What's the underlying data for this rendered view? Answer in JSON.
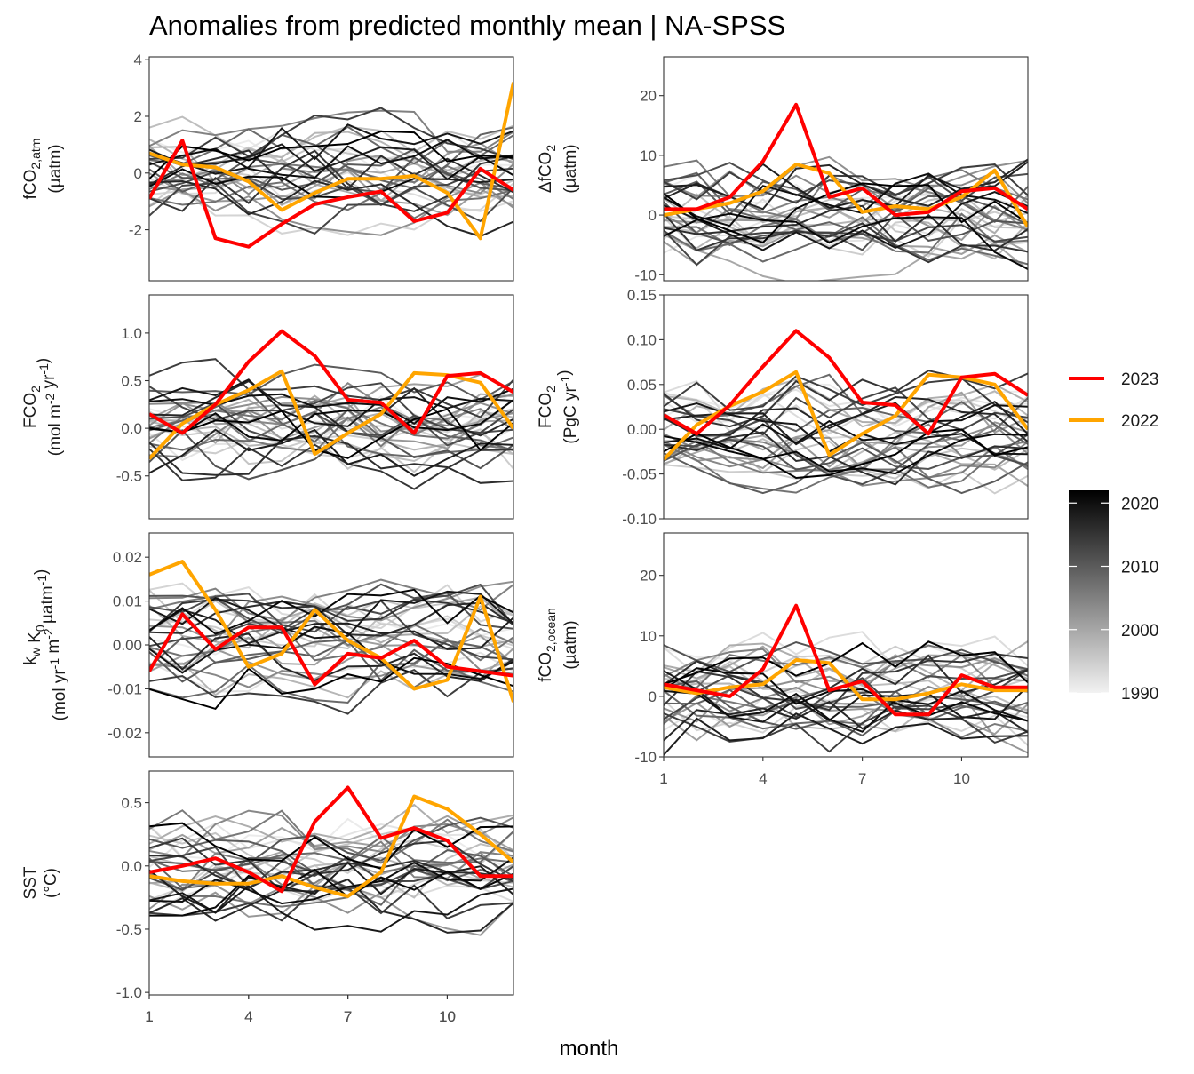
{
  "title": "Anomalies from predicted monthly mean | NA-SPSS",
  "x_axis_title": "month",
  "colors": {
    "year_2023": "#ff0000",
    "year_2022": "#ffa500",
    "background_years_light": "#f2f2f2",
    "background_years_dark": "#000000"
  },
  "legend": {
    "highlight": [
      {
        "label": "2023",
        "color": "#ff0000"
      },
      {
        "label": "2022",
        "color": "#ffa500"
      }
    ],
    "gradient_ticks": [
      "2020",
      "2010",
      "2000",
      "1990"
    ],
    "gradient_values": [
      2020,
      2010,
      2000,
      1990
    ],
    "gradient_range": [
      1990,
      2022
    ]
  },
  "chart_data": [
    {
      "type": "line",
      "panel": "fCO2_atm",
      "ylabel_parts": [
        "fCO",
        "2,atm",
        "(µatm)"
      ],
      "xlim": [
        1,
        12
      ],
      "ylim": [
        -3.8,
        4.1
      ],
      "x_ticks": [
        1,
        4,
        7,
        10
      ],
      "x_tick_labels": [
        "1",
        "4",
        "7",
        "10"
      ],
      "y_ticks": [
        -2,
        0,
        2,
        4
      ],
      "y_tick_labels": [
        "-2",
        "0",
        "2",
        "4"
      ],
      "x": [
        1,
        2,
        3,
        4,
        5,
        6,
        7,
        8,
        9,
        10,
        11,
        12
      ],
      "series": [
        {
          "name": "2023",
          "values": [
            -0.9,
            1.15,
            -2.3,
            -2.6,
            -1.8,
            -1.1,
            -0.85,
            -0.65,
            -1.7,
            -1.4,
            0.15,
            -0.6
          ]
        },
        {
          "name": "2022",
          "values": [
            0.7,
            0.3,
            0.2,
            -0.3,
            -1.3,
            -0.7,
            -0.2,
            -0.2,
            -0.1,
            -0.7,
            -2.3,
            3.2
          ]
        }
      ]
    },
    {
      "type": "line",
      "panel": "delta_fCO2",
      "ylabel_parts": [
        "ΔfCO",
        "2",
        "(µatm)"
      ],
      "xlim": [
        1,
        12
      ],
      "ylim": [
        -11,
        26.5
      ],
      "x_ticks": [
        1,
        4,
        7,
        10
      ],
      "x_tick_labels": [
        "1",
        "4",
        "7",
        "10"
      ],
      "y_ticks": [
        -10,
        0,
        10,
        20
      ],
      "y_tick_labels": [
        "-10",
        "0",
        "10",
        "20"
      ],
      "x": [
        1,
        2,
        3,
        4,
        5,
        6,
        7,
        8,
        9,
        10,
        11,
        12
      ],
      "series": [
        {
          "name": "2023",
          "values": [
            1,
            1,
            3,
            9,
            18.5,
            3,
            4.5,
            0,
            0.5,
            4,
            4.5,
            1
          ]
        },
        {
          "name": "2022",
          "values": [
            0,
            1,
            2,
            4,
            8.5,
            7,
            0.5,
            1.5,
            1,
            3,
            7.5,
            -2
          ]
        }
      ]
    },
    {
      "type": "line",
      "panel": "FCO2_flux_density",
      "ylabel_parts": [
        "FCO",
        "2",
        "(mol m",
        "-2",
        " yr",
        "-1",
        ")"
      ],
      "xlim": [
        1,
        12
      ],
      "ylim": [
        -0.95,
        1.4
      ],
      "x_ticks": [
        1,
        4,
        7,
        10
      ],
      "x_tick_labels": [
        "1",
        "4",
        "7",
        "10"
      ],
      "y_ticks": [
        -0.5,
        0,
        0.5,
        1.0
      ],
      "y_tick_labels": [
        "-0.5",
        "0.0",
        "0.5",
        "1.0"
      ],
      "x": [
        1,
        2,
        3,
        4,
        5,
        6,
        7,
        8,
        9,
        10,
        11,
        12
      ],
      "series": [
        {
          "name": "2023",
          "values": [
            0.15,
            -0.05,
            0.25,
            0.7,
            1.02,
            0.76,
            0.3,
            0.27,
            -0.05,
            0.55,
            0.58,
            0.38
          ]
        },
        {
          "name": "2022",
          "values": [
            -0.32,
            0.05,
            0.25,
            0.4,
            0.6,
            -0.27,
            -0.05,
            0.15,
            0.58,
            0.56,
            0.48,
            0.0
          ]
        }
      ]
    },
    {
      "type": "line",
      "panel": "FCO2_integrated",
      "ylabel_parts": [
        "FCO",
        "2",
        "(PgC yr",
        "-1",
        ")"
      ],
      "xlim": [
        1,
        12
      ],
      "ylim": [
        -0.1,
        0.15
      ],
      "x_ticks": [
        1,
        4,
        7,
        10
      ],
      "x_tick_labels": [
        "1",
        "4",
        "7",
        "10"
      ],
      "y_ticks": [
        -0.1,
        -0.05,
        0,
        0.05,
        0.1,
        0.15
      ],
      "y_tick_labels": [
        "-0.10",
        "-0.05",
        "0.00",
        "0.05",
        "0.10",
        "0.15"
      ],
      "x": [
        1,
        2,
        3,
        4,
        5,
        6,
        7,
        8,
        9,
        10,
        11,
        12
      ],
      "series": [
        {
          "name": "2023",
          "values": [
            0.016,
            -0.005,
            0.027,
            0.07,
            0.11,
            0.08,
            0.03,
            0.027,
            -0.005,
            0.058,
            0.062,
            0.038
          ]
        },
        {
          "name": "2022",
          "values": [
            -0.034,
            0.005,
            0.026,
            0.042,
            0.064,
            -0.029,
            -0.005,
            0.015,
            0.061,
            0.058,
            0.05,
            0.0
          ]
        }
      ]
    },
    {
      "type": "line",
      "panel": "kw_K0",
      "ylabel_parts": [
        "k",
        "w",
        " K",
        "0",
        "(mol yr",
        "-1",
        " m",
        "-2",
        " µatm",
        "-1",
        ")"
      ],
      "xlim": [
        1,
        12
      ],
      "ylim": [
        -0.0255,
        0.0255
      ],
      "x_ticks": [
        1,
        4,
        7,
        10
      ],
      "x_tick_labels": [
        "1",
        "4",
        "7",
        "10"
      ],
      "y_ticks": [
        -0.02,
        -0.01,
        0,
        0.01,
        0.02
      ],
      "y_tick_labels": [
        "-0.02",
        "-0.01",
        "0.00",
        "0.01",
        "0.02"
      ],
      "x": [
        1,
        2,
        3,
        4,
        5,
        6,
        7,
        8,
        9,
        10,
        11,
        12
      ],
      "series": [
        {
          "name": "2023",
          "values": [
            -0.006,
            0.007,
            -0.001,
            0.004,
            0.004,
            -0.009,
            -0.002,
            -0.003,
            0.001,
            -0.005,
            -0.006,
            -0.007
          ]
        },
        {
          "name": "2022",
          "values": [
            0.016,
            0.019,
            0.008,
            -0.005,
            -0.002,
            0.008,
            0.001,
            -0.003,
            -0.01,
            -0.008,
            0.011,
            -0.013
          ]
        }
      ]
    },
    {
      "type": "line",
      "panel": "fCO2_ocean",
      "ylabel_parts": [
        "fCO",
        "2,ocean",
        "(µatm)"
      ],
      "xlim": [
        1,
        12
      ],
      "ylim": [
        -10,
        27
      ],
      "x_ticks": [
        1,
        4,
        7,
        10
      ],
      "x_tick_labels": [
        "1",
        "4",
        "7",
        "10"
      ],
      "y_ticks": [
        -10,
        0,
        10,
        20
      ],
      "y_tick_labels": [
        "-10",
        "0",
        "10",
        "20"
      ],
      "x": [
        1,
        2,
        3,
        4,
        5,
        6,
        7,
        8,
        9,
        10,
        11,
        12
      ],
      "series": [
        {
          "name": "2023",
          "values": [
            2,
            1,
            0,
            4.5,
            15,
            1,
            2.5,
            -3,
            -3,
            3.5,
            1.5,
            1.5
          ]
        },
        {
          "name": "2022",
          "values": [
            1.5,
            0.5,
            1.5,
            2,
            6,
            5.5,
            -0.5,
            -0.5,
            0.5,
            2,
            1,
            1
          ]
        }
      ]
    },
    {
      "type": "line",
      "panel": "SST",
      "ylabel_parts": [
        "SST",
        "(°C)"
      ],
      "xlim": [
        1,
        12
      ],
      "ylim": [
        -1.02,
        0.75
      ],
      "x_ticks": [
        1,
        4,
        7,
        10
      ],
      "x_tick_labels": [
        "1",
        "4",
        "7",
        "10"
      ],
      "y_ticks": [
        -1.0,
        -0.5,
        0,
        0.5
      ],
      "y_tick_labels": [
        "-1.0",
        "-0.5",
        "0.0",
        "0.5"
      ],
      "x": [
        1,
        2,
        3,
        4,
        5,
        6,
        7,
        8,
        9,
        10,
        11,
        12
      ],
      "series": [
        {
          "name": "2023",
          "values": [
            -0.05,
            0.0,
            0.06,
            -0.05,
            -0.2,
            0.35,
            0.62,
            0.22,
            0.3,
            0.2,
            -0.08,
            -0.08
          ]
        },
        {
          "name": "2022",
          "values": [
            -0.08,
            -0.12,
            -0.14,
            -0.14,
            -0.08,
            -0.17,
            -0.24,
            -0.05,
            0.55,
            0.45,
            0.25,
            0.03
          ]
        }
      ]
    }
  ]
}
